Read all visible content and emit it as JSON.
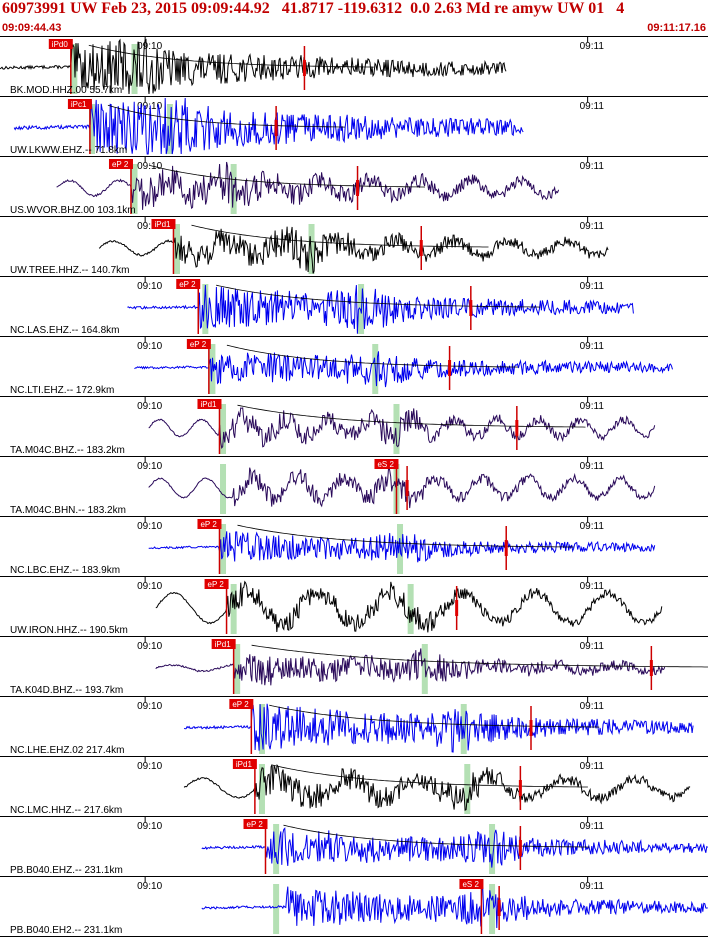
{
  "header": {
    "title": "60973991 UW Feb 23, 2015 09:09:44.92   41.8717 -119.6312  0.0 2.63 Md re amyw UW 01   4",
    "start_time": "09:09:44.43",
    "end_time": "09:11:17.16"
  },
  "colors": {
    "header_text": "#c00000",
    "pick_box": "#e00000",
    "pick_line": "#cc0000",
    "green_band": "#b4e0b4",
    "trace_blue": "#0000ee",
    "trace_purple": "#2a0a5a",
    "trace_black": "#000000",
    "coda_curve": "#000000"
  },
  "chart_data": {
    "type": "seismogram",
    "event": {
      "id": "60973991",
      "network": "UW",
      "date": "Feb 23, 2015",
      "origin_time": "09:09:44.92",
      "lat": 41.8717,
      "lon": -119.6312,
      "depth_km": 0.0,
      "magnitude": 2.63,
      "magnitude_type": "Md"
    },
    "time_window": [
      "09:09:44.43",
      "09:11:17.16"
    ],
    "traces": [
      {
        "label": "BK.MOD.HHZ.00 55.7km",
        "color": "black",
        "pick_label": "iPd0",
        "tick_labels": [
          "09:10",
          "09:11"
        ],
        "pick_frac": 0.1,
        "trace_start": 0.0,
        "trace_end": 0.715,
        "amp": 0.45,
        "freq": 90,
        "wave_amp": 0.02,
        "wave_freq": 4,
        "coda": true,
        "green": [
          0.105,
          0.19
        ],
        "s_frac": 0.43,
        "end_frac": 0.43
      },
      {
        "label": "UW.LKWW.EHZ.-- 71.8km",
        "color": "blue",
        "pick_label": "iPc1",
        "tick_labels": [
          "09:10",
          "09:11"
        ],
        "pick_frac": 0.127,
        "trace_start": 0.02,
        "trace_end": 0.74,
        "amp": 0.55,
        "freq": 110,
        "wave_amp": 0.02,
        "wave_freq": 3,
        "coda": true,
        "green": [
          0.13,
          0.24
        ],
        "s_frac": 0.39,
        "end_frac": 0.39
      },
      {
        "label": "US.WVOR.BHZ.00 103.1km",
        "color": "purple",
        "pick_label": "eP 2",
        "tick_labels": [
          "09:10",
          "09:11"
        ],
        "pick_frac": 0.185,
        "trace_start": 0.08,
        "trace_end": 0.79,
        "amp": 0.32,
        "freq": 70,
        "wave_amp": 0.14,
        "wave_freq": 20,
        "coda": true,
        "green": [
          0.19,
          0.33
        ],
        "s_frac": 0.505,
        "end_frac": 0.505
      },
      {
        "label": "UW.TREE.HHZ.-- 140.7km",
        "color": "black",
        "pick_label": "iPd1",
        "tick_labels": [
          "09:10",
          "09:11"
        ],
        "pick_frac": 0.245,
        "trace_start": 0.14,
        "trace_end": 0.86,
        "amp": 0.32,
        "freq": 80,
        "wave_amp": 0.13,
        "wave_freq": 18,
        "coda": true,
        "green": [
          0.25,
          0.44
        ],
        "s_frac": 0.595,
        "end_frac": 0.595
      },
      {
        "label": "NC.LAS.EHZ.-- 164.8km",
        "color": "blue",
        "pick_label": "eP 2",
        "tick_labels": [
          "09:10",
          "09:11"
        ],
        "pick_frac": 0.28,
        "trace_start": 0.18,
        "trace_end": 0.895,
        "amp": 0.42,
        "freq": 110,
        "wave_amp": 0.02,
        "wave_freq": 3,
        "coda": true,
        "green": [
          0.29,
          0.51
        ],
        "s_frac": 0.665,
        "end_frac": 0.665
      },
      {
        "label": "NC.LTI.EHZ.-- 172.9km",
        "color": "blue",
        "pick_label": "eP 2",
        "tick_labels": [
          "09:10",
          "09:11"
        ],
        "pick_frac": 0.295,
        "trace_start": 0.19,
        "trace_end": 0.95,
        "amp": 0.35,
        "freq": 130,
        "wave_amp": 0.02,
        "wave_freq": 3,
        "coda": true,
        "green": [
          0.3,
          0.53
        ],
        "s_frac": 0.635,
        "end_frac": 0.635
      },
      {
        "label": "TA.M04C.BHZ.-- 183.2km",
        "color": "purple",
        "pick_label": "iPd1",
        "tick_labels": [
          "09:10",
          "09:11"
        ],
        "pick_frac": 0.31,
        "trace_start": 0.21,
        "trace_end": 0.925,
        "amp": 0.25,
        "freq": 70,
        "wave_amp": 0.16,
        "wave_freq": 24,
        "coda": true,
        "green": [
          0.315,
          0.56
        ],
        "s_frac": 0.73,
        "end_frac": 0.73
      },
      {
        "label": "TA.M04C.BHN.-- 183.2km",
        "color": "purple",
        "pick_label": "eS 2",
        "tick_labels": [
          "09:10",
          "09:11"
        ],
        "pick_frac": 0.56,
        "trace_start": 0.21,
        "trace_end": 0.925,
        "amp": 0.22,
        "freq": 60,
        "wave_amp": 0.18,
        "wave_freq": 22,
        "coda": false,
        "green": [
          0.315,
          0.56
        ],
        "s_frac": 0.575,
        "end_frac": 0.575
      },
      {
        "label": "NC.LBC.EHZ.-- 183.9km",
        "color": "blue",
        "pick_label": "eP 2",
        "tick_labels": [
          "09:10",
          "09:11"
        ],
        "pick_frac": 0.31,
        "trace_start": 0.21,
        "trace_end": 0.925,
        "amp": 0.3,
        "freq": 120,
        "wave_amp": 0.02,
        "wave_freq": 3,
        "coda": true,
        "green": [
          0.315,
          0.565
        ],
        "s_frac": 0.715,
        "end_frac": 0.715
      },
      {
        "label": "UW.IRON.HHZ.-- 190.5km",
        "color": "black",
        "pick_label": "eP 2",
        "tick_labels": [
          "09:10",
          "09:11"
        ],
        "pick_frac": 0.32,
        "trace_start": 0.22,
        "trace_end": 0.935,
        "amp": 0.25,
        "freq": 70,
        "wave_amp": 0.28,
        "wave_freq": 14,
        "coda": false,
        "green": [
          0.33,
          0.58
        ],
        "s_frac": 0.645,
        "end_frac": 0.645
      },
      {
        "label": "TA.K04D.BHZ.-- 193.7km",
        "color": "purple",
        "pick_label": "iPd1",
        "tick_labels": [
          "09:10",
          "09:11"
        ],
        "pick_frac": 0.33,
        "trace_start": 0.22,
        "trace_end": 0.94,
        "amp": 0.3,
        "freq": 90,
        "wave_amp": 0.06,
        "wave_freq": 16,
        "coda": true,
        "green": [
          0.335,
          0.6
        ],
        "s_frac": 0.92,
        "end_frac": 0.92
      },
      {
        "label": "NC.LHE.EHZ.02 217.4km",
        "color": "blue",
        "pick_label": "eP 2",
        "tick_labels": [
          "09:10",
          "09:11"
        ],
        "pick_frac": 0.355,
        "trace_start": 0.26,
        "trace_end": 0.98,
        "amp": 0.45,
        "freq": 140,
        "wave_amp": 0.02,
        "wave_freq": 3,
        "coda": true,
        "green": [
          0.37,
          0.655
        ],
        "s_frac": 0.75,
        "end_frac": 0.75
      },
      {
        "label": "NC.LMC.HHZ.-- 217.6km",
        "color": "black",
        "pick_label": "iPd1",
        "tick_labels": [
          "09:10",
          "09:11"
        ],
        "pick_frac": 0.36,
        "trace_start": 0.26,
        "trace_end": 0.975,
        "amp": 0.3,
        "freq": 90,
        "wave_amp": 0.18,
        "wave_freq": 14,
        "coda": true,
        "green": [
          0.37,
          0.66
        ],
        "s_frac": 0.735,
        "end_frac": 0.735
      },
      {
        "label": "PB.B040.EHZ.-- 231.1km",
        "color": "blue",
        "pick_label": "eP 2",
        "tick_labels": [
          "09:10",
          "09:11"
        ],
        "pick_frac": 0.375,
        "trace_start": 0.285,
        "trace_end": 1.0,
        "amp": 0.38,
        "freq": 140,
        "wave_amp": 0.02,
        "wave_freq": 3,
        "coda": true,
        "green": [
          0.39,
          0.695
        ],
        "s_frac": 0.735,
        "end_frac": 0.735
      },
      {
        "label": "PB.B040.EH2.-- 231.1km",
        "color": "blue",
        "pick_label": "eS 2",
        "tick_labels": [
          "09:10",
          "09:11"
        ],
        "pick_frac": 0.68,
        "trace_start": 0.285,
        "trace_end": 1.0,
        "amp": 0.38,
        "freq": 140,
        "wave_amp": 0.02,
        "wave_freq": 3,
        "coda": false,
        "green": [
          0.39,
          0.695
        ],
        "s_frac": 0.705,
        "end_frac": 0.705
      }
    ]
  }
}
